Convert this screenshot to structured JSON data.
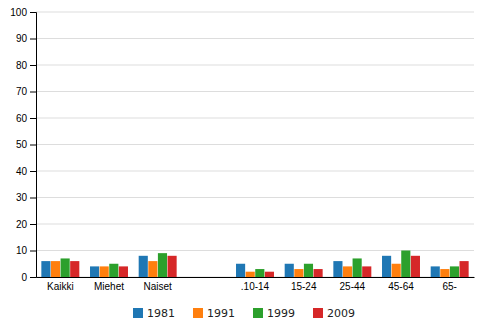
{
  "chart_data": {
    "type": "bar",
    "categories": [
      "Kaikki",
      "Miehet",
      "Naiset",
      null,
      ".10-14",
      "15-24",
      "25-44",
      "45-64",
      "65-"
    ],
    "series": [
      {
        "name": "1981",
        "values": [
          6,
          4,
          8,
          0,
          5,
          5,
          6,
          8,
          4
        ]
      },
      {
        "name": "1991",
        "values": [
          6,
          4,
          6,
          0,
          2,
          3,
          4,
          5,
          3
        ]
      },
      {
        "name": "1999",
        "values": [
          7,
          5,
          9,
          0,
          3,
          5,
          7,
          10,
          4
        ]
      },
      {
        "name": "2009",
        "values": [
          6,
          4,
          8,
          0,
          2,
          3,
          4,
          8,
          6
        ]
      }
    ],
    "ylim": [
      0,
      100
    ],
    "yticks": [
      0,
      10,
      20,
      30,
      40,
      50,
      60,
      70,
      80,
      90,
      100
    ],
    "grid": true,
    "legend": "bottom"
  }
}
